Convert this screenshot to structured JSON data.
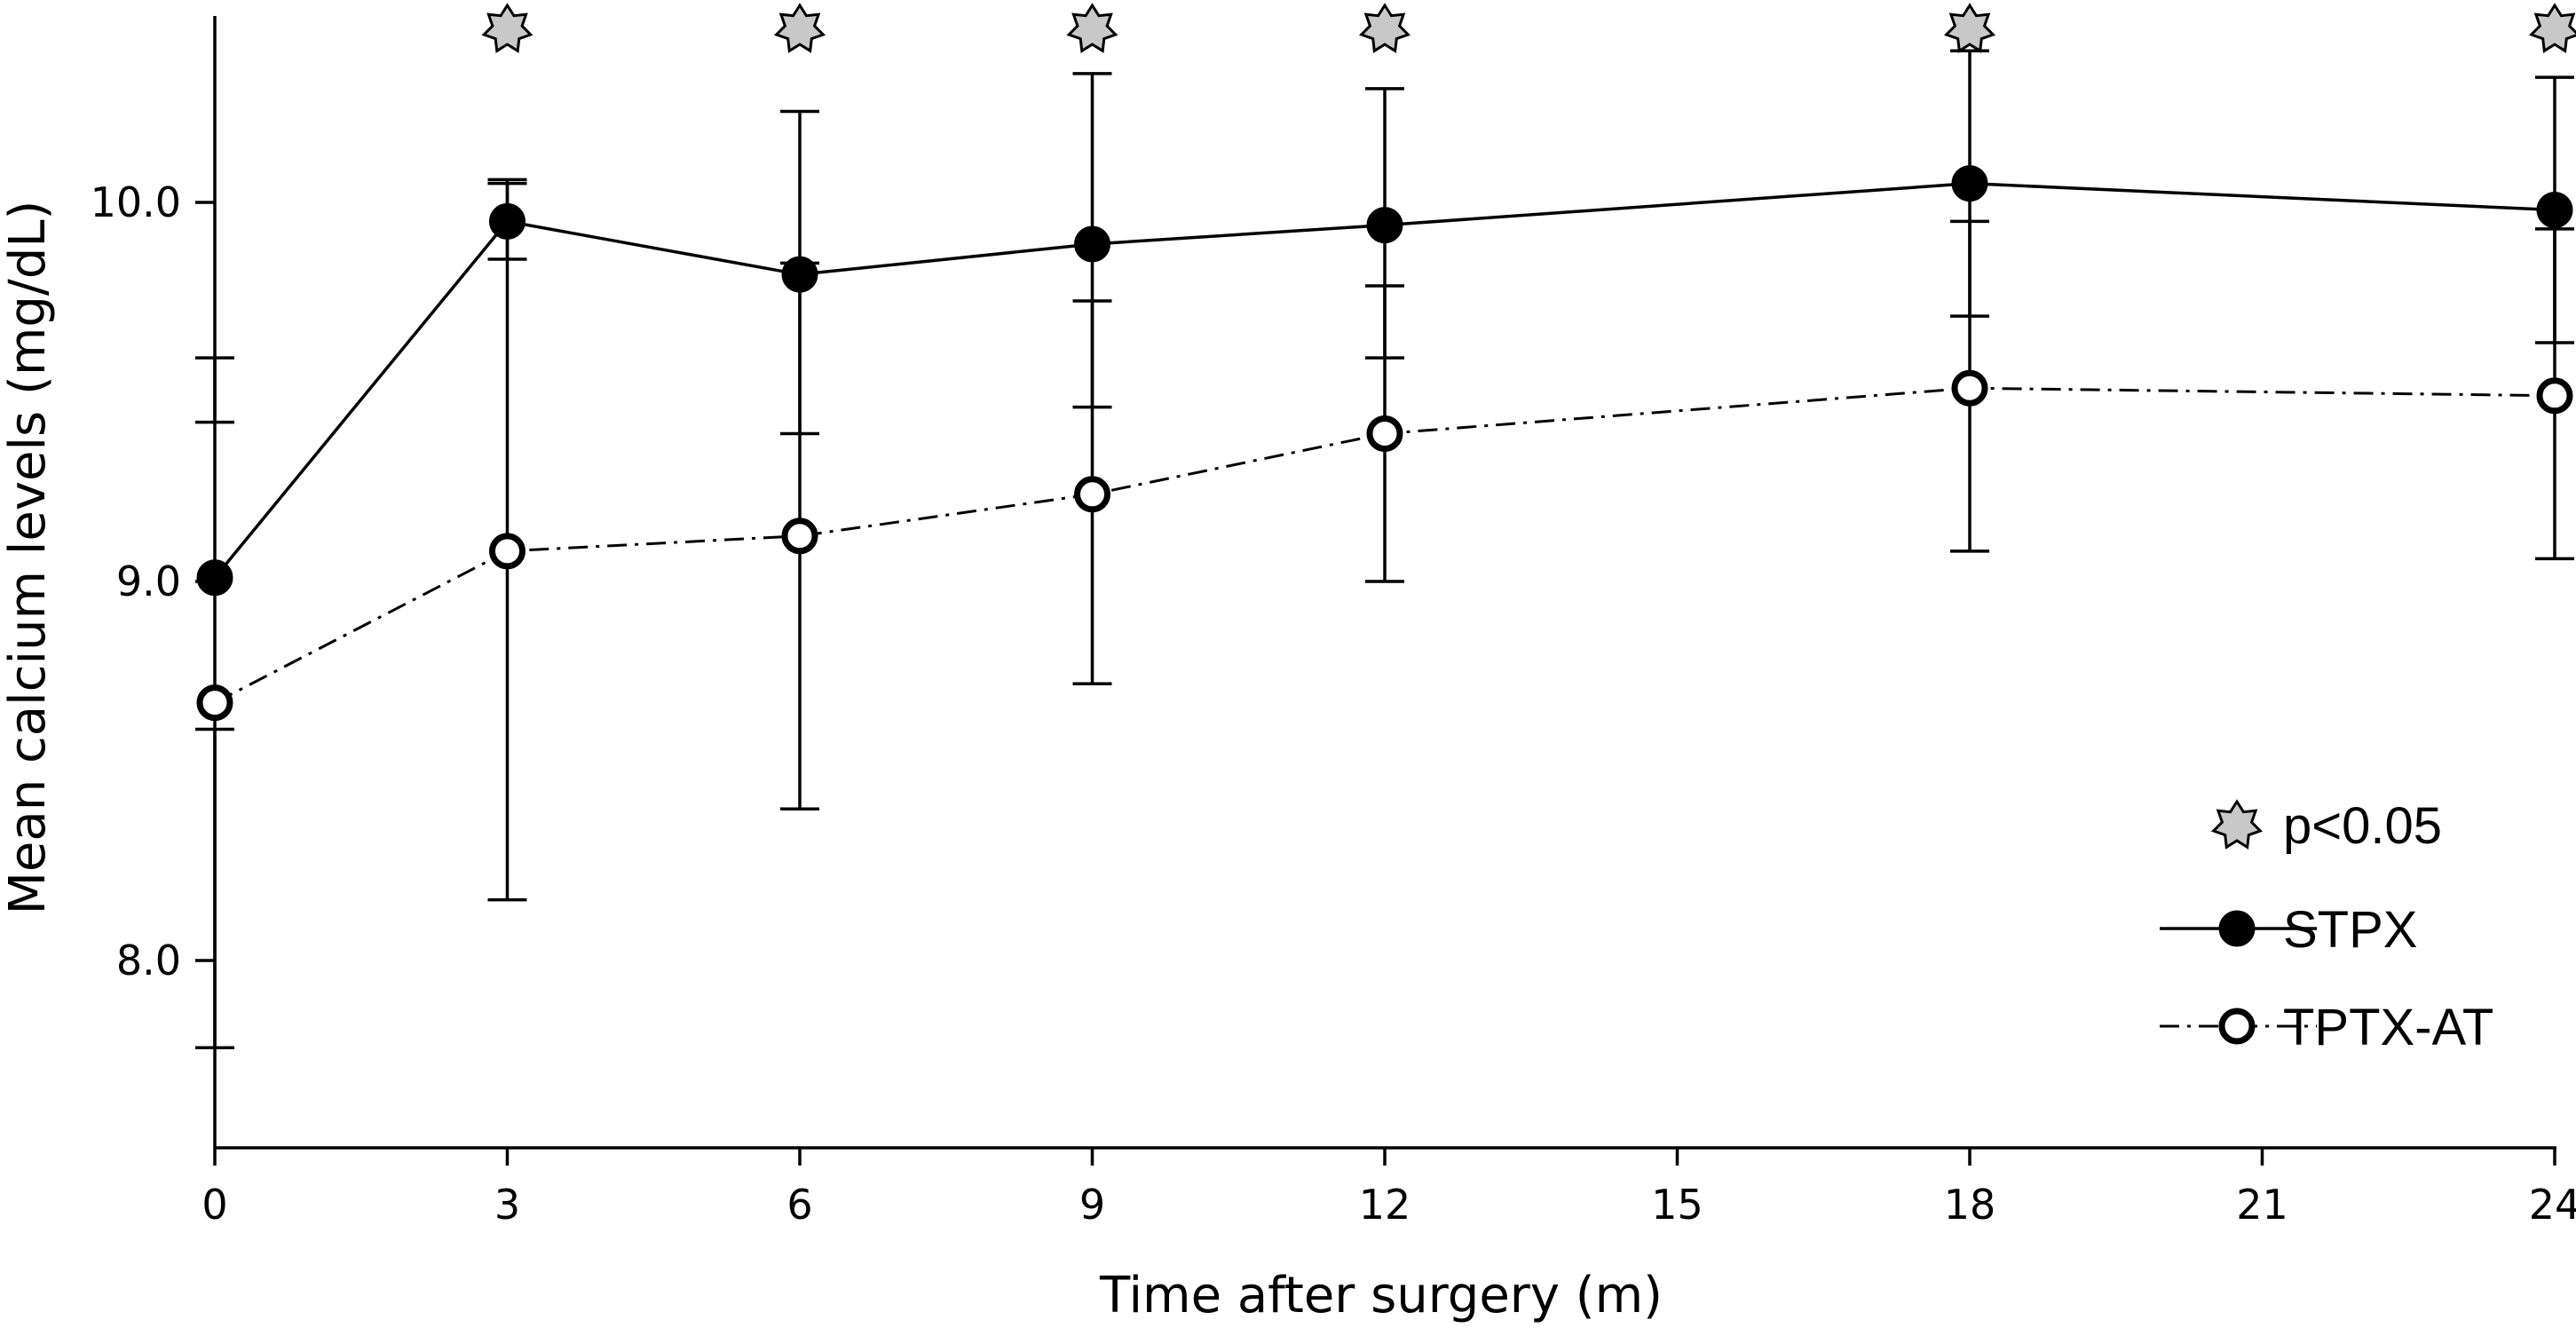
{
  "chart_data": {
    "type": "line",
    "title": "",
    "xlabel": "Time after surgery (m)",
    "ylabel": "Mean calcium levels (mg/dL)",
    "xlim": [
      0,
      24
    ],
    "ylim": [
      7.5,
      10.5
    ],
    "xticks": [
      0,
      3,
      6,
      9,
      12,
      15,
      18,
      21,
      24
    ],
    "yticks": [
      8.0,
      9.0,
      10.0
    ],
    "ytick_labels": [
      "8.0",
      "9.0",
      "10.0"
    ],
    "grid": false,
    "legend_position": "bottom-right",
    "series": [
      {
        "name": "STPX",
        "marker": "filled-circle",
        "line": "solid",
        "x": [
          0,
          3,
          6,
          9,
          12,
          18,
          24
        ],
        "y": [
          9.01,
          9.95,
          9.81,
          9.89,
          9.94,
          10.05,
          9.98
        ],
        "err_low": [
          9.42,
          9.85,
          9.39,
          9.46,
          9.59,
          9.7,
          9.63
        ],
        "err_high": [
          9.59,
          10.06,
          10.24,
          10.34,
          10.3,
          10.4,
          10.33
        ]
      },
      {
        "name": "TPTX-AT",
        "marker": "open-circle",
        "line": "dash-dot",
        "x": [
          0,
          3,
          6,
          9,
          12,
          18,
          24
        ],
        "y": [
          8.68,
          9.08,
          9.12,
          9.23,
          9.39,
          9.51,
          9.49
        ],
        "err_low": [
          7.77,
          8.16,
          8.4,
          8.73,
          9.0,
          9.08,
          9.06
        ],
        "err_high": [
          8.61,
          10.05,
          9.84,
          9.74,
          9.78,
          9.95,
          9.93
        ]
      }
    ],
    "significance": {
      "label": "p<0.05",
      "symbol": "star",
      "color": "#c8c8c8",
      "x": [
        3,
        6,
        9,
        12,
        18,
        24
      ]
    }
  }
}
